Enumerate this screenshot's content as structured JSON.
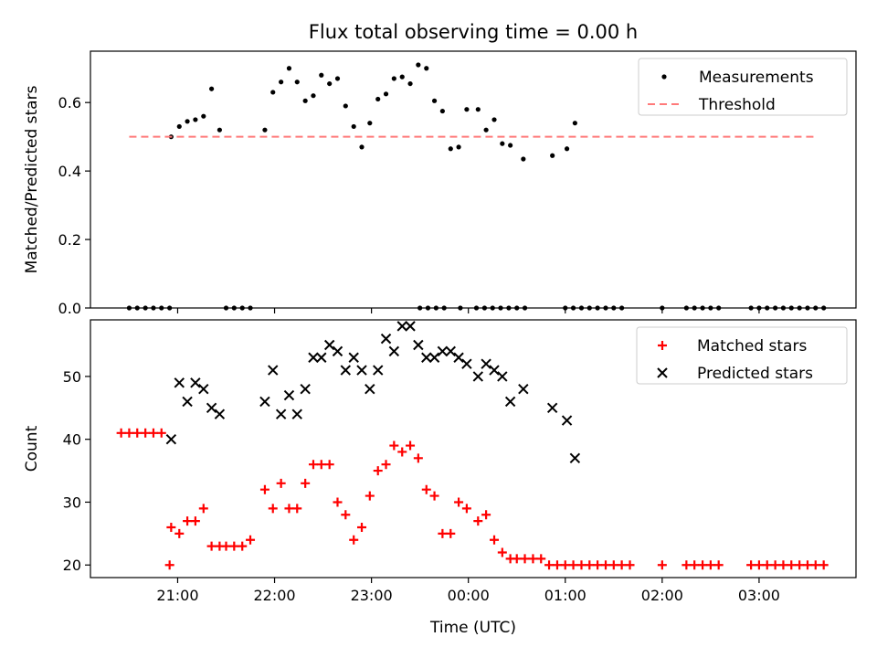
{
  "chart_data": {
    "title": "Flux total observing time = 0.00 h",
    "xlabel": "Time (UTC)",
    "x_unit": "hours after 00:00 UTC (negative = previous evening)",
    "x_range": [
      -3.9,
      4.0
    ],
    "x_ticks": [
      {
        "value": -3,
        "label": "21:00"
      },
      {
        "value": -2,
        "label": "22:00"
      },
      {
        "value": -1,
        "label": "23:00"
      },
      {
        "value": 0,
        "label": "00:00"
      },
      {
        "value": 1,
        "label": "01:00"
      },
      {
        "value": 2,
        "label": "02:00"
      },
      {
        "value": 3,
        "label": "03:00"
      }
    ],
    "panels": [
      {
        "id": "ratio",
        "type": "scatter",
        "ylabel": "Matched/Predicted stars",
        "ylim": [
          0,
          0.75
        ],
        "y_ticks": [
          0.0,
          0.2,
          0.4,
          0.6
        ],
        "y_tick_labels": [
          "0.0",
          "0.2",
          "0.4",
          "0.6"
        ],
        "legend": {
          "position": "top-right",
          "items": [
            "Measurements",
            "Threshold"
          ]
        },
        "series": [
          {
            "name": "Measurements",
            "marker": "dot",
            "color": "#000000",
            "x": [
              -3.5,
              -3.417,
              -3.333,
              -3.25,
              -3.167,
              -3.083,
              -2.5,
              -2.417,
              -2.333,
              -2.25,
              -0.5,
              -0.417,
              -0.333,
              -0.25,
              -0.083,
              0.083,
              0.167,
              0.25,
              0.333,
              0.417,
              0.5,
              0.583,
              1.0,
              1.083,
              1.167,
              1.25,
              1.333,
              1.417,
              1.5,
              1.583,
              2.0,
              2.25,
              2.333,
              2.417,
              2.5,
              2.583,
              2.917,
              3.0,
              3.083,
              3.167,
              3.25,
              3.333,
              3.417,
              3.5,
              3.583,
              3.667
            ],
            "y": [
              0,
              0,
              0,
              0,
              0,
              0,
              0,
              0,
              0,
              0,
              0,
              0,
              0,
              0,
              0,
              0,
              0,
              0,
              0,
              0,
              0,
              0,
              0,
              0,
              0,
              0,
              0,
              0,
              0,
              0,
              0,
              0,
              0,
              0,
              0,
              0,
              0,
              0,
              0,
              0,
              0,
              0,
              0,
              0,
              0,
              0
            ]
          },
          {
            "name": "Measurements",
            "marker": "dot",
            "color": "#000000",
            "x": [
              -3.067,
              -2.983,
              -2.9,
              -2.817,
              -2.733,
              -2.65,
              -2.567,
              -2.1,
              -2.017,
              -1.933,
              -1.85,
              -1.767,
              -1.683,
              -1.6,
              -1.517,
              -1.433,
              -1.35,
              -1.267,
              -1.183,
              -1.1,
              -1.017,
              -0.933,
              -0.85,
              -0.767,
              -0.683,
              -0.6,
              -0.517,
              -0.433,
              -0.35,
              -0.267,
              -0.183,
              -0.1,
              -0.017,
              0.1,
              0.183,
              0.267,
              0.35,
              0.433,
              0.567,
              0.867,
              1.017,
              1.1
            ],
            "y": [
              0.5,
              0.53,
              0.545,
              0.55,
              0.56,
              0.64,
              0.52,
              0.52,
              0.63,
              0.66,
              0.7,
              0.66,
              0.605,
              0.62,
              0.68,
              0.655,
              0.67,
              0.59,
              0.53,
              0.47,
              0.54,
              0.61,
              0.625,
              0.67,
              0.675,
              0.655,
              0.71,
              0.7,
              0.605,
              0.575,
              0.465,
              0.47,
              0.58,
              0.58,
              0.52,
              0.55,
              0.48,
              0.475,
              0.435,
              0.445,
              0.465,
              0.54
            ]
          },
          {
            "name": "Threshold",
            "type": "line",
            "dash": true,
            "color": "#ff7a7a",
            "x": [
              -3.5,
              3.6
            ],
            "y": [
              0.5,
              0.5
            ]
          }
        ]
      },
      {
        "id": "count",
        "type": "scatter",
        "ylabel": "Count",
        "ylim": [
          18,
          59
        ],
        "y_ticks": [
          20,
          30,
          40,
          50
        ],
        "y_tick_labels": [
          "20",
          "30",
          "40",
          "50"
        ],
        "legend": {
          "position": "top-right",
          "items": [
            "Matched stars",
            "Predicted stars"
          ]
        },
        "series": [
          {
            "name": "Matched stars",
            "marker": "plus",
            "color": "#ff0000",
            "x": [
              -3.583,
              -3.5,
              -3.417,
              -3.333,
              -3.25,
              -3.167,
              -3.083,
              -3.067,
              -2.983,
              -2.9,
              -2.817,
              -2.733,
              -2.65,
              -2.567,
              -2.5,
              -2.417,
              -2.333,
              -2.25,
              -2.1,
              -2.017,
              -1.933,
              -1.85,
              -1.767,
              -1.683,
              -1.6,
              -1.517,
              -1.433,
              -1.35,
              -1.267,
              -1.183,
              -1.1,
              -1.017,
              -0.933,
              -0.85,
              -0.767,
              -0.683,
              -0.6,
              -0.517,
              -0.433,
              -0.35,
              -0.267,
              -0.183,
              -0.1,
              -0.017,
              0.1,
              0.183,
              0.267,
              0.35,
              0.433,
              0.5,
              0.583,
              0.667,
              0.75,
              0.833,
              0.917,
              1.0,
              1.083,
              1.167,
              1.25,
              1.333,
              1.417,
              1.5,
              1.583,
              1.667,
              2.0,
              2.25,
              2.333,
              2.417,
              2.5,
              2.583,
              2.917,
              3.0,
              3.083,
              3.167,
              3.25,
              3.333,
              3.417,
              3.5,
              3.583,
              3.667
            ],
            "y": [
              41,
              41,
              41,
              41,
              41,
              41,
              20,
              26,
              25,
              27,
              27,
              29,
              23,
              23,
              23,
              23,
              23,
              24,
              32,
              29,
              33,
              29,
              29,
              33,
              36,
              36,
              36,
              30,
              28,
              24,
              26,
              31,
              35,
              36,
              39,
              38,
              39,
              37,
              32,
              31,
              25,
              25,
              30,
              29,
              27,
              28,
              24,
              22,
              21,
              21,
              21,
              21,
              21,
              20,
              20,
              20,
              20,
              20,
              20,
              20,
              20,
              20,
              20,
              20,
              20,
              20,
              20,
              20,
              20,
              20,
              20,
              20,
              20,
              20,
              20,
              20,
              20,
              20,
              20,
              20
            ]
          },
          {
            "name": "Predicted stars",
            "marker": "x",
            "color": "#000000",
            "x": [
              -3.067,
              -2.983,
              -2.9,
              -2.817,
              -2.733,
              -2.65,
              -2.567,
              -2.1,
              -2.017,
              -1.933,
              -1.85,
              -1.767,
              -1.683,
              -1.6,
              -1.517,
              -1.433,
              -1.35,
              -1.267,
              -1.183,
              -1.1,
              -1.017,
              -0.933,
              -0.85,
              -0.767,
              -0.683,
              -0.6,
              -0.517,
              -0.433,
              -0.35,
              -0.267,
              -0.183,
              -0.1,
              -0.017,
              0.1,
              0.183,
              0.267,
              0.35,
              0.433,
              0.567,
              0.867,
              1.017,
              1.1
            ],
            "y": [
              40,
              49,
              46,
              49,
              48,
              45,
              44,
              46,
              51,
              44,
              47,
              44,
              48,
              53,
              53,
              55,
              54,
              51,
              53,
              51,
              48,
              51,
              56,
              54,
              58,
              58,
              55,
              53,
              53,
              54,
              54,
              53,
              52,
              50,
              52,
              51,
              50,
              46,
              48,
              45,
              43,
              37
            ]
          }
        ]
      }
    ]
  }
}
